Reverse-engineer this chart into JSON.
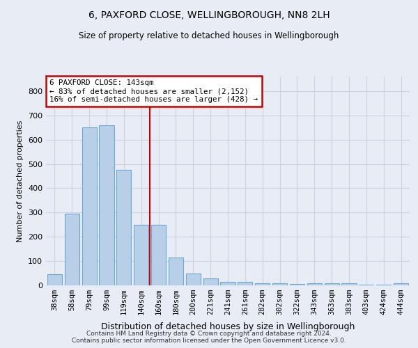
{
  "title": "6, PAXFORD CLOSE, WELLINGBOROUGH, NN8 2LH",
  "subtitle": "Size of property relative to detached houses in Wellingborough",
  "xlabel": "Distribution of detached houses by size in Wellingborough",
  "ylabel": "Number of detached properties",
  "categories": [
    "38sqm",
    "58sqm",
    "79sqm",
    "99sqm",
    "119sqm",
    "140sqm",
    "160sqm",
    "180sqm",
    "200sqm",
    "221sqm",
    "241sqm",
    "261sqm",
    "282sqm",
    "302sqm",
    "322sqm",
    "343sqm",
    "363sqm",
    "383sqm",
    "403sqm",
    "424sqm",
    "444sqm"
  ],
  "values": [
    45,
    295,
    650,
    660,
    475,
    250,
    250,
    115,
    50,
    28,
    15,
    13,
    8,
    8,
    5,
    8,
    8,
    8,
    3,
    3,
    10
  ],
  "bar_color": "#b8cfe8",
  "bar_edge_color": "#6aaad4",
  "vline_color": "#cc0000",
  "vline_index": 5.5,
  "annotation_line1": "6 PAXFORD CLOSE: 143sqm",
  "annotation_line2": "← 83% of detached houses are smaller (2,152)",
  "annotation_line3": "16% of semi-detached houses are larger (428) →",
  "annotation_box_color": "#cc0000",
  "ylim": [
    0,
    860
  ],
  "yticks": [
    0,
    100,
    200,
    300,
    400,
    500,
    600,
    700,
    800
  ],
  "grid_color": "#c8d4e0",
  "bg_color": "#e8ecf4",
  "footer1": "Contains HM Land Registry data © Crown copyright and database right 2024.",
  "footer2": "Contains public sector information licensed under the Open Government Licence v3.0."
}
